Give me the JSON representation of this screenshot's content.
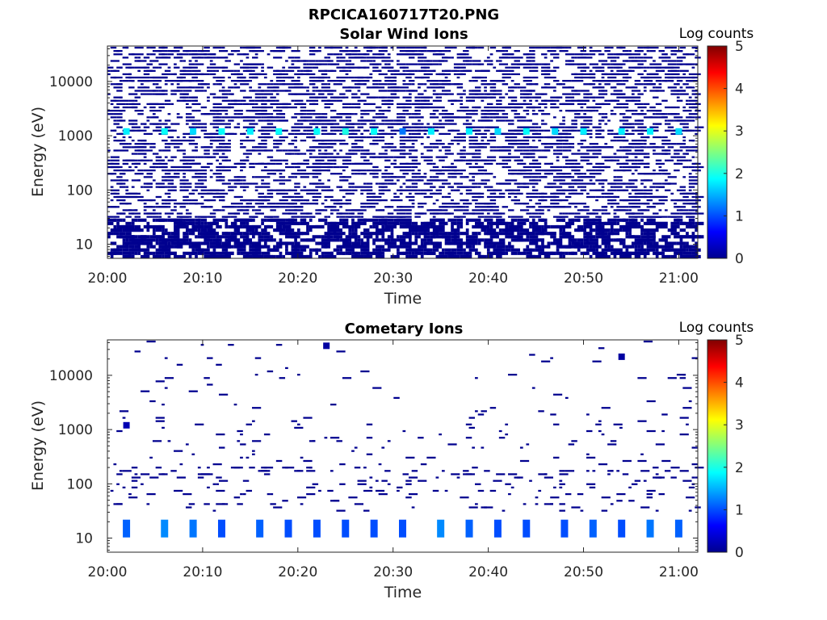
{
  "figure_title": "RPCICA160717T20.PNG",
  "colors": {
    "dark_navy": "#00008f",
    "axis": "#262626",
    "colormap": [
      "#00008f",
      "#0000ff",
      "#0080ff",
      "#00ffff",
      "#80ff80",
      "#ffff00",
      "#ff8000",
      "#ff0000",
      "#800000"
    ]
  },
  "chart_data": [
    {
      "type": "heatmap",
      "title": "Solar Wind Ions",
      "xlabel": "Time",
      "ylabel": "Energy (eV)",
      "x_ticks": [
        "20:00",
        "20:10",
        "20:20",
        "20:30",
        "20:40",
        "20:50",
        "21:00"
      ],
      "x_range": [
        "20:00",
        "21:02"
      ],
      "y_scale": "log",
      "y_ticks": [
        "10",
        "100",
        "1000",
        "10000"
      ],
      "y_range": [
        5.5,
        45000
      ],
      "colorbar": {
        "label": "Log counts",
        "range": [
          0,
          5
        ],
        "ticks": [
          "0",
          "1",
          "2",
          "3",
          "4",
          "5"
        ]
      },
      "description_points": [
        {
          "time": "20:02",
          "energy": 1200,
          "log_counts": 1.8
        },
        {
          "time": "20:06",
          "energy": 1200,
          "log_counts": 1.9
        },
        {
          "time": "20:09",
          "energy": 1200,
          "log_counts": 1.7
        },
        {
          "time": "20:12",
          "energy": 1200,
          "log_counts": 1.9
        },
        {
          "time": "20:15",
          "energy": 1200,
          "log_counts": 1.8
        },
        {
          "time": "20:18",
          "energy": 1200,
          "log_counts": 1.9
        },
        {
          "time": "20:22",
          "energy": 1200,
          "log_counts": 1.9
        },
        {
          "time": "20:25",
          "energy": 1200,
          "log_counts": 2.0
        },
        {
          "time": "20:28",
          "energy": 1200,
          "log_counts": 1.9
        },
        {
          "time": "20:31",
          "energy": 1200,
          "log_counts": 1.2
        },
        {
          "time": "20:34",
          "energy": 1200,
          "log_counts": 1.8
        },
        {
          "time": "20:38",
          "energy": 1200,
          "log_counts": 1.8
        },
        {
          "time": "20:41",
          "energy": 1200,
          "log_counts": 1.7
        },
        {
          "time": "20:44",
          "energy": 1200,
          "log_counts": 1.9
        },
        {
          "time": "20:47",
          "energy": 1200,
          "log_counts": 1.7
        },
        {
          "time": "20:50",
          "energy": 1200,
          "log_counts": 1.8
        },
        {
          "time": "20:54",
          "energy": 1200,
          "log_counts": 1.8
        },
        {
          "time": "20:57",
          "energy": 1200,
          "log_counts": 1.8
        },
        {
          "time": "21:00",
          "energy": 1200,
          "log_counts": 1.7
        }
      ]
    },
    {
      "type": "heatmap",
      "title": "Cometary Ions",
      "xlabel": "Time",
      "ylabel": "Energy (eV)",
      "x_ticks": [
        "20:00",
        "20:10",
        "20:20",
        "20:30",
        "20:40",
        "20:50",
        "21:00"
      ],
      "x_range": [
        "20:00",
        "21:02"
      ],
      "y_scale": "log",
      "y_ticks": [
        "10",
        "100",
        "1000",
        "10000"
      ],
      "y_range": [
        5.5,
        45000
      ],
      "colorbar": {
        "label": "Log counts",
        "range": [
          0,
          5
        ],
        "ticks": [
          "0",
          "1",
          "2",
          "3",
          "4",
          "5"
        ]
      },
      "description_points": [
        {
          "time": "20:02",
          "energy": 1200,
          "log_counts": 0.2
        },
        {
          "time": "20:02",
          "energy": 15,
          "log_counts": 1.1
        },
        {
          "time": "20:06",
          "energy": 15,
          "log_counts": 1.3
        },
        {
          "time": "20:09",
          "energy": 15,
          "log_counts": 1.2
        },
        {
          "time": "20:12",
          "energy": 15,
          "log_counts": 1.0
        },
        {
          "time": "20:16",
          "energy": 15,
          "log_counts": 1.1
        },
        {
          "time": "20:19",
          "energy": 15,
          "log_counts": 1.0
        },
        {
          "time": "20:22",
          "energy": 15,
          "log_counts": 1.0
        },
        {
          "time": "20:25",
          "energy": 15,
          "log_counts": 1.0
        },
        {
          "time": "20:28",
          "energy": 15,
          "log_counts": 1.0
        },
        {
          "time": "20:31",
          "energy": 15,
          "log_counts": 1.0
        },
        {
          "time": "20:35",
          "energy": 15,
          "log_counts": 1.3
        },
        {
          "time": "20:38",
          "energy": 15,
          "log_counts": 1.1
        },
        {
          "time": "20:41",
          "energy": 15,
          "log_counts": 1.0
        },
        {
          "time": "20:44",
          "energy": 15,
          "log_counts": 1.0
        },
        {
          "time": "20:48",
          "energy": 15,
          "log_counts": 1.0
        },
        {
          "time": "20:51",
          "energy": 15,
          "log_counts": 1.1
        },
        {
          "time": "20:54",
          "energy": 15,
          "log_counts": 1.0
        },
        {
          "time": "20:57",
          "energy": 15,
          "log_counts": 1.2
        },
        {
          "time": "21:00",
          "energy": 15,
          "log_counts": 1.1
        },
        {
          "time": "20:23",
          "energy": 35000,
          "log_counts": 0.1
        },
        {
          "time": "20:54",
          "energy": 22000,
          "log_counts": 0.1
        }
      ]
    }
  ]
}
